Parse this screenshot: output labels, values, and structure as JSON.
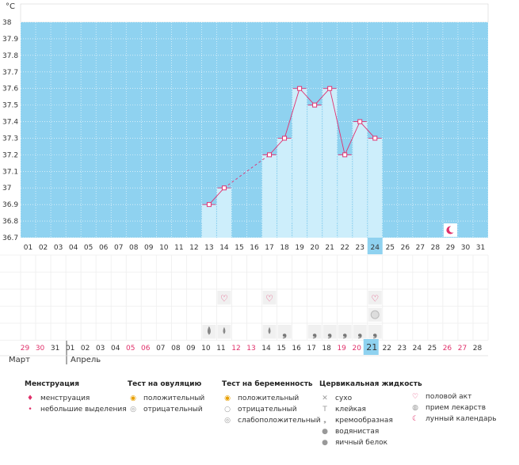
{
  "unit_label": "°C",
  "colors": {
    "band": "#8fd2f0",
    "bar": "#cdeefb",
    "line": "#e03070",
    "today": "#8fd2f0",
    "accent_text": "#e0306a"
  },
  "chart_data": {
    "type": "line",
    "title": "",
    "ylabel": "°C",
    "ylim": [
      36.7,
      38
    ],
    "y_ticks": [
      "38",
      "37.9",
      "37.8",
      "37.7",
      "37.6",
      "37.5",
      "37.4",
      "37.3",
      "37.2",
      "37.1",
      "37",
      "36.9",
      "36.8",
      "36.7"
    ],
    "cycle_days": [
      "01",
      "02",
      "03",
      "04",
      "05",
      "06",
      "07",
      "08",
      "09",
      "10",
      "11",
      "12",
      "13",
      "14",
      "15",
      "16",
      "17",
      "18",
      "19",
      "20",
      "21",
      "22",
      "23",
      "24",
      "25",
      "26",
      "27",
      "28",
      "29",
      "30",
      "31"
    ],
    "temperatures": [
      null,
      null,
      null,
      null,
      null,
      null,
      null,
      null,
      null,
      null,
      null,
      null,
      36.9,
      37.0,
      null,
      null,
      37.2,
      37.3,
      37.6,
      37.5,
      37.6,
      37.2,
      37.4,
      37.3,
      null,
      null,
      null,
      null,
      null,
      null,
      null
    ],
    "today_index": 23
  },
  "calendar_dates": [
    {
      "d": "29",
      "red": true
    },
    {
      "d": "30",
      "red": true
    },
    {
      "d": "31",
      "red": false
    },
    {
      "d": "01",
      "red": false
    },
    {
      "d": "02",
      "red": false
    },
    {
      "d": "03",
      "red": false
    },
    {
      "d": "04",
      "red": false
    },
    {
      "d": "05",
      "red": true
    },
    {
      "d": "06",
      "red": true
    },
    {
      "d": "07",
      "red": false
    },
    {
      "d": "08",
      "red": false
    },
    {
      "d": "09",
      "red": false
    },
    {
      "d": "10",
      "red": false
    },
    {
      "d": "11",
      "red": false
    },
    {
      "d": "12",
      "red": true
    },
    {
      "d": "13",
      "red": true
    },
    {
      "d": "14",
      "red": false
    },
    {
      "d": "15",
      "red": false
    },
    {
      "d": "16",
      "red": false
    },
    {
      "d": "17",
      "red": false
    },
    {
      "d": "18",
      "red": false
    },
    {
      "d": "19",
      "red": true
    },
    {
      "d": "20",
      "red": true
    },
    {
      "d": "21",
      "red": false
    },
    {
      "d": "22",
      "red": false
    },
    {
      "d": "23",
      "red": false
    },
    {
      "d": "24",
      "red": false
    },
    {
      "d": "25",
      "red": false
    },
    {
      "d": "26",
      "red": true
    },
    {
      "d": "27",
      "red": true
    },
    {
      "d": "28",
      "red": false
    }
  ],
  "months": {
    "first": "Март",
    "second": "Апрель"
  },
  "markers": {
    "lunar": [
      28
    ],
    "heart": [
      13,
      16,
      23
    ],
    "medication": [
      23
    ],
    "fluid": [
      {
        "i": 12,
        "t": "watery"
      },
      {
        "i": 13,
        "t": "drop"
      },
      {
        "i": 16,
        "t": "drop"
      },
      {
        "i": 17,
        "t": "creamy"
      },
      {
        "i": 19,
        "t": "creamy"
      },
      {
        "i": 20,
        "t": "creamy"
      },
      {
        "i": 21,
        "t": "creamy"
      },
      {
        "i": 22,
        "t": "creamy"
      },
      {
        "i": 23,
        "t": "creamy"
      }
    ]
  },
  "legend": {
    "menstruation": {
      "title": "Менструация",
      "items": [
        {
          "icon": "menstruation-icon",
          "glyph": "💧",
          "label": "менструация"
        },
        {
          "icon": "spotting-icon",
          "glyph": "•",
          "label": "небольшие выделения"
        }
      ]
    },
    "ovulation": {
      "title": "Тест на овуляцию",
      "items": [
        {
          "icon": "positive-icon",
          "glyph": "◉",
          "label": "положительный"
        },
        {
          "icon": "negative-icon",
          "glyph": "◎",
          "label": "отрицательный"
        }
      ]
    },
    "pregnancy": {
      "title": "Тест на беременность",
      "items": [
        {
          "icon": "positive-icon",
          "glyph": "◉",
          "label": "положительный"
        },
        {
          "icon": "negative-icon",
          "glyph": "○",
          "label": "отрицательный"
        },
        {
          "icon": "weak-positive-icon",
          "glyph": "◎",
          "label": "слабоположительный"
        }
      ]
    },
    "cervical": {
      "title": "Цервикальная жидкость",
      "items": [
        {
          "icon": "dry-icon",
          "glyph": "✕",
          "label": "сухо"
        },
        {
          "icon": "sticky-icon",
          "glyph": "T",
          "label": "клейкая"
        },
        {
          "icon": "creamy-icon",
          "glyph": "❟",
          "label": "кремообразная"
        },
        {
          "icon": "watery-icon",
          "glyph": "●",
          "label": "водянистая"
        },
        {
          "icon": "eggwhite-icon",
          "glyph": "●",
          "label": "яичный белок"
        }
      ]
    },
    "other": {
      "title": "",
      "items": [
        {
          "icon": "heart-icon",
          "glyph": "♡",
          "label": "половой акт"
        },
        {
          "icon": "medication-icon",
          "glyph": "◍",
          "label": "прием лекарств"
        },
        {
          "icon": "moon-icon",
          "glyph": "☾",
          "label": "лунный календарь"
        }
      ]
    }
  }
}
